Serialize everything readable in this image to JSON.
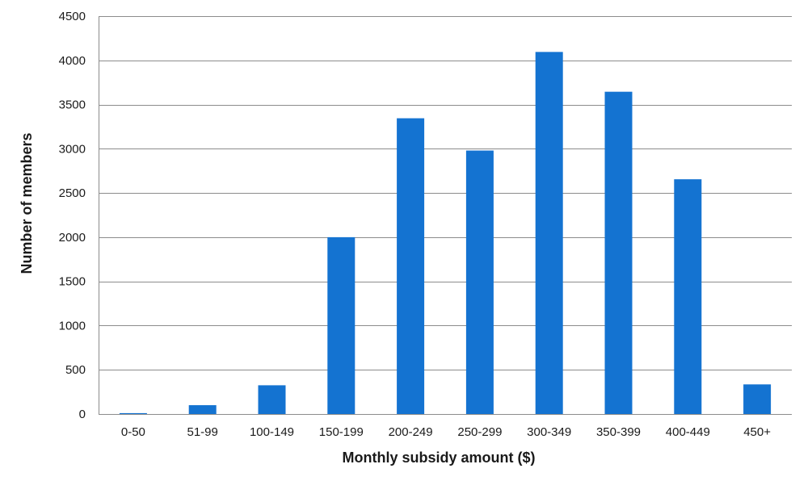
{
  "chart_data": {
    "type": "bar",
    "title": "",
    "xlabel": "Monthly subsidy amount ($)",
    "ylabel": "Number of members",
    "categories": [
      "0-50",
      "51-99",
      "100-149",
      "150-199",
      "200-249",
      "250-299",
      "300-349",
      "350-399",
      "400-449",
      "450+"
    ],
    "values": [
      10,
      100,
      325,
      2000,
      3345,
      2980,
      4095,
      3645,
      2655,
      335
    ],
    "ylim": [
      0,
      4500
    ],
    "yticks": [
      0,
      500,
      1000,
      1500,
      2000,
      2500,
      3000,
      3500,
      4000,
      4500
    ],
    "grid": true,
    "legend": "none",
    "bar_color": "#1473D1"
  }
}
